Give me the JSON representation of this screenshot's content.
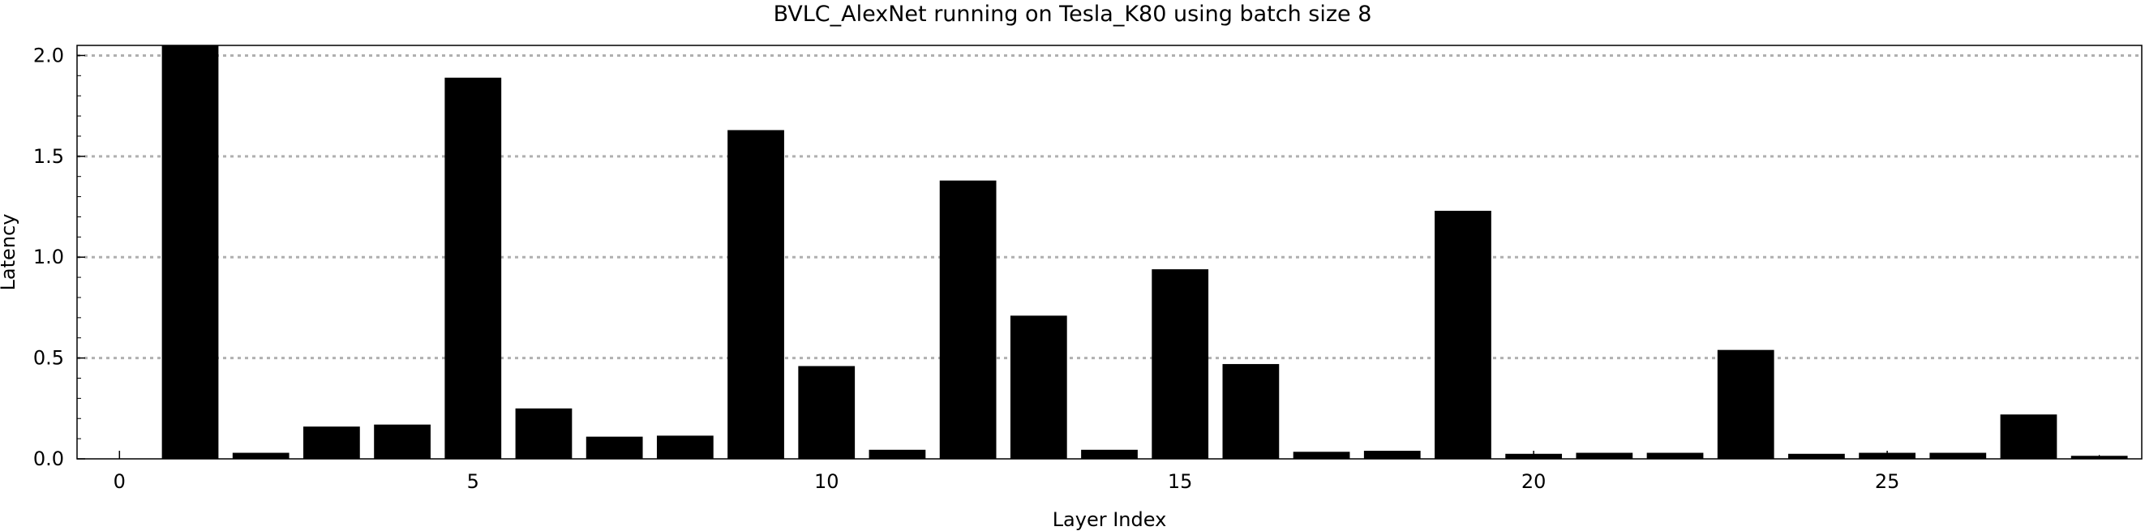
{
  "chart_data": {
    "type": "bar",
    "title": "BVLC_AlexNet running on Tesla_K80 using batch size 8",
    "xlabel": "Layer Index",
    "ylabel": "Latency",
    "xlim": [
      -0.6,
      28.6
    ],
    "ylim": [
      0,
      2.05
    ],
    "xticks": [
      0,
      5,
      10,
      15,
      20,
      25
    ],
    "yticks": [
      0.0,
      0.5,
      1.0,
      1.5,
      2.0
    ],
    "ytick_labels": [
      "0.0",
      "0.5",
      "1.0",
      "1.5",
      "2.0"
    ],
    "grid": "horizontal dotted at y ticks",
    "x": [
      1,
      2,
      3,
      4,
      5,
      6,
      7,
      8,
      9,
      10,
      11,
      12,
      13,
      14,
      15,
      16,
      17,
      18,
      19,
      20,
      21,
      22,
      23,
      24,
      25,
      26,
      27,
      28
    ],
    "values": [
      2.07,
      0.03,
      0.16,
      0.17,
      1.89,
      0.25,
      0.11,
      0.115,
      1.63,
      0.46,
      0.045,
      1.38,
      0.71,
      0.045,
      0.94,
      0.47,
      0.035,
      0.04,
      1.23,
      0.025,
      0.03,
      0.03,
      0.54,
      0.025,
      0.03,
      0.03,
      0.22,
      0.015
    ],
    "colors": {
      "bar": "#000000",
      "grid": "#b0b0b0",
      "axis": "#000000"
    }
  }
}
